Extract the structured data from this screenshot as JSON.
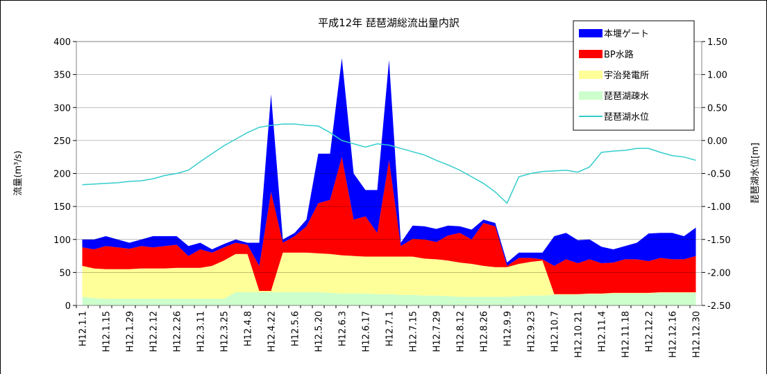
{
  "chart_data": {
    "type": "area",
    "title": "平成12年 琵琶湖総流出量内訳",
    "y_label": "流量(m³/s)",
    "y2_label": "琵琶湖水位[m]",
    "categories": [
      "H12.1.1",
      null,
      "H12.1.15",
      null,
      "H12.1.29",
      null,
      "H12.2.12",
      null,
      "H12.2.26",
      null,
      "H12.3.11",
      null,
      "H12.3.25",
      null,
      "H12.4.8",
      null,
      "H12.4.22",
      null,
      "H12.5.6",
      null,
      "H12.5.20",
      null,
      "H12.6.3",
      null,
      "H12.6.17",
      null,
      "H12.7.1",
      null,
      "H12.7.15",
      null,
      "H12.7.29",
      null,
      "H12.8.12",
      null,
      "H12.8.26",
      null,
      "H12.9.9",
      null,
      "H12.9.23",
      null,
      "H12.10.7",
      null,
      "H12.10.21",
      null,
      "H12.11.4",
      null,
      "H12.11.18",
      null,
      "H12.12.2",
      null,
      "H12.12.16",
      null,
      "H12.12.30"
    ],
    "series": [
      {
        "name": "本堰ゲート",
        "type": "area",
        "color": "#0000ff",
        "values": [
          12,
          15,
          15,
          12,
          9,
          10,
          17,
          15,
          13,
          15,
          10,
          5,
          5,
          5,
          3,
          35,
          148,
          5,
          5,
          10,
          75,
          70,
          150,
          70,
          40,
          65,
          152,
          5,
          20,
          20,
          20,
          15,
          10,
          15,
          5,
          5,
          5,
          8,
          8,
          10,
          45,
          40,
          35,
          30,
          25,
          20,
          20,
          25,
          42,
          38,
          40,
          35,
          43
        ]
      },
      {
        "name": "BP水路",
        "type": "area",
        "color": "#ff0000",
        "values": [
          28,
          29,
          35,
          33,
          31,
          34,
          32,
          34,
          35,
          18,
          28,
          20,
          20,
          17,
          14,
          38,
          150,
          15,
          25,
          40,
          76,
          82,
          149,
          55,
          61,
          36,
          146,
          16,
          27,
          29,
          26,
          38,
          45,
          37,
          65,
          62,
          2,
          9,
          6,
          2,
          43,
          53,
          47,
          52,
          46,
          46,
          51,
          51,
          48,
          52,
          50,
          50,
          55
        ]
      },
      {
        "name": "宇治発電所",
        "type": "area",
        "color": "#ffff99",
        "values": [
          47,
          45,
          45,
          45,
          45,
          46,
          46,
          46,
          47,
          47,
          47,
          50,
          58,
          58,
          58,
          2,
          2,
          60,
          60,
          60,
          59,
          59,
          58,
          57,
          56,
          57,
          57,
          58,
          58,
          56,
          55,
          54,
          52,
          50,
          47,
          45,
          45,
          49,
          51,
          53,
          1,
          1,
          1,
          1,
          1,
          1,
          1,
          1,
          1,
          1,
          1,
          1,
          1
        ]
      },
      {
        "name": "琵琶湖疎水",
        "type": "area",
        "color": "#ccffcc",
        "values": [
          13,
          11,
          10,
          10,
          10,
          10,
          10,
          10,
          10,
          10,
          10,
          10,
          10,
          20,
          20,
          20,
          20,
          20,
          20,
          20,
          20,
          19,
          18,
          18,
          18,
          17,
          17,
          16,
          16,
          15,
          15,
          14,
          13,
          13,
          13,
          13,
          13,
          14,
          15,
          15,
          16,
          16,
          16,
          17,
          17,
          18,
          18,
          18,
          18,
          19,
          19,
          19,
          19
        ]
      },
      {
        "name": "琵琶湖水位",
        "type": "line",
        "axis": "y2",
        "color": "#33cccc",
        "values": [
          -0.67,
          -0.66,
          -0.65,
          -0.64,
          -0.62,
          -0.61,
          -0.58,
          -0.53,
          -0.5,
          -0.45,
          -0.32,
          -0.2,
          -0.08,
          0.02,
          0.12,
          0.2,
          0.23,
          0.25,
          0.25,
          0.23,
          0.22,
          0.12,
          0.0,
          -0.05,
          -0.1,
          -0.05,
          -0.07,
          -0.12,
          -0.17,
          -0.22,
          -0.3,
          -0.37,
          -0.45,
          -0.55,
          -0.65,
          -0.78,
          -0.95,
          -0.55,
          -0.5,
          -0.47,
          -0.46,
          -0.45,
          -0.48,
          -0.4,
          -0.18,
          -0.16,
          -0.15,
          -0.12,
          -0.12,
          -0.18,
          -0.23,
          -0.25,
          -0.3
        ]
      }
    ],
    "ylim": [
      0,
      400
    ],
    "yticks": [
      0,
      50,
      100,
      150,
      200,
      250,
      300,
      350,
      400
    ],
    "y2lim": [
      -2.5,
      1.5
    ],
    "y2ticks": [
      {
        "value": -2.5,
        "label": "-2.50"
      },
      {
        "value": -2,
        "label": "-2.00"
      },
      {
        "value": -1.5,
        "label": "-1.50"
      },
      {
        "value": -1,
        "label": "-1.00"
      },
      {
        "value": -0.5,
        "label": "-0.50"
      },
      {
        "value": 0,
        "label": "0.00"
      },
      {
        "value": 0.5,
        "label": "0.50"
      },
      {
        "value": 1,
        "label": "1.00"
      },
      {
        "value": 1.5,
        "label": "1.50"
      }
    ],
    "grid": true,
    "legend": "top-right"
  }
}
